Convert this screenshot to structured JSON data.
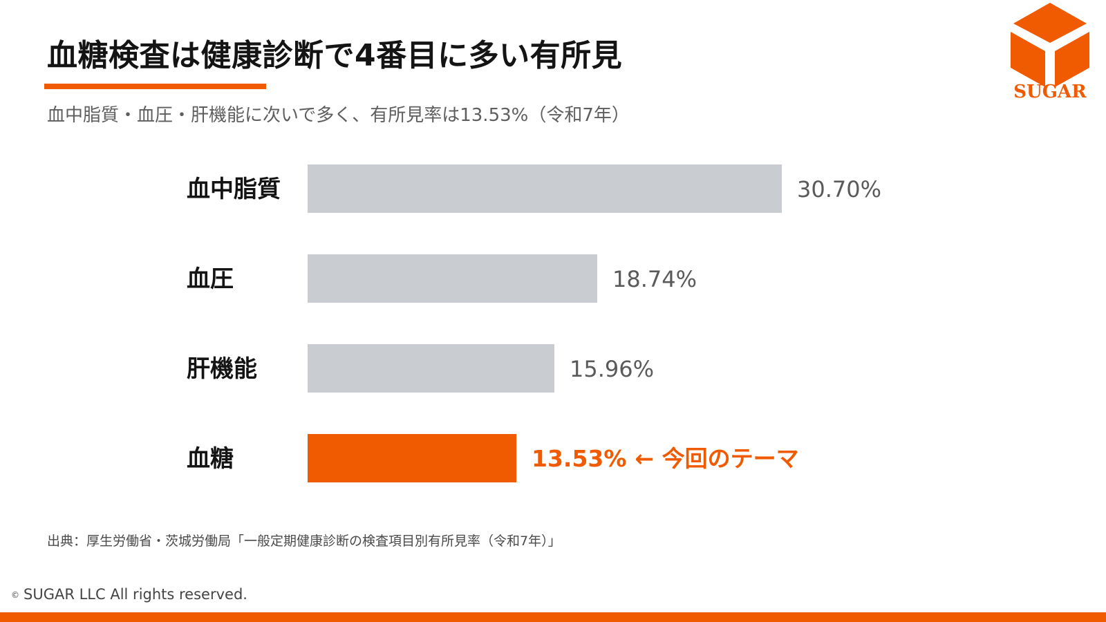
{
  "header": {
    "title": "血糖検査は健康診断で4番目に多い有所見",
    "subtitle": "血中脂質・血圧・肝機能に次いで多く、有所見率は13.53%（令和7年）"
  },
  "logo": {
    "text": "SUGAR",
    "icon": "cube-logo-icon"
  },
  "chart_data": {
    "type": "bar",
    "orientation": "horizontal",
    "categories": [
      "血中脂質",
      "血圧",
      "肝機能",
      "血糖"
    ],
    "values": [
      30.7,
      18.74,
      15.96,
      13.53
    ],
    "value_labels": [
      "30.70%",
      "18.74%",
      "15.96%",
      "13.53%"
    ],
    "highlight_index": 3,
    "highlight_annotation": "← 今回のテーマ",
    "unit": "%",
    "xlim": [
      0,
      30.7
    ],
    "grid": false,
    "colors": {
      "default": "#c9cdd2",
      "highlight": "#f05a00",
      "highlight_text": "#f05a00"
    }
  },
  "footer": {
    "source": "出典：厚生労働省・茨城労働局「一般定期健康診断の検査項目別有所見率（令和7年）」",
    "copyright_mark": "©",
    "copyright": "SUGAR LLC All rights reserved."
  },
  "colors": {
    "accent": "#f05a00",
    "text": "#141414",
    "muted": "#5e5e5e"
  }
}
